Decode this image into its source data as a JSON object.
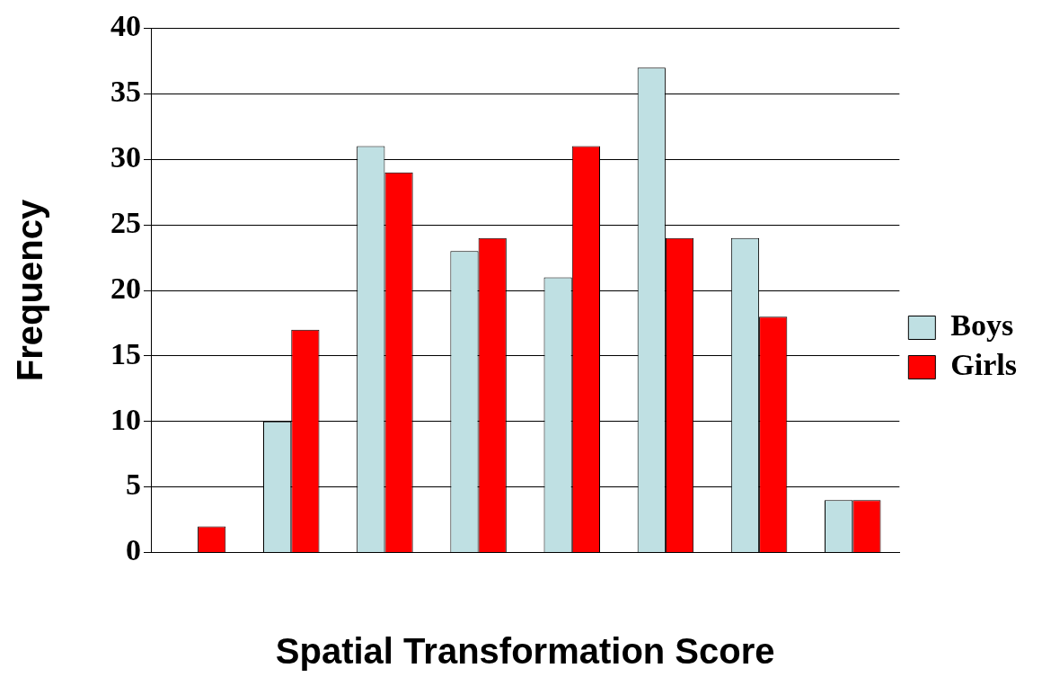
{
  "chart_data": {
    "type": "bar",
    "xlabel": "Spatial Transformation Score",
    "ylabel": "Frequency",
    "categories": [
      null,
      null,
      null,
      null,
      null,
      null,
      null,
      null
    ],
    "series": [
      {
        "name": "Boys",
        "color": "#bfe0e3",
        "values": [
          0,
          10,
          31,
          23,
          21,
          37,
          24,
          4
        ]
      },
      {
        "name": "Girls",
        "color": "#ff0000",
        "values": [
          2,
          17,
          29,
          24,
          31,
          24,
          18,
          4
        ]
      }
    ],
    "ylim": [
      0,
      40
    ],
    "yticks": [
      0,
      5,
      10,
      15,
      20,
      25,
      30,
      35,
      40
    ],
    "grid": "y",
    "legend": "right"
  }
}
